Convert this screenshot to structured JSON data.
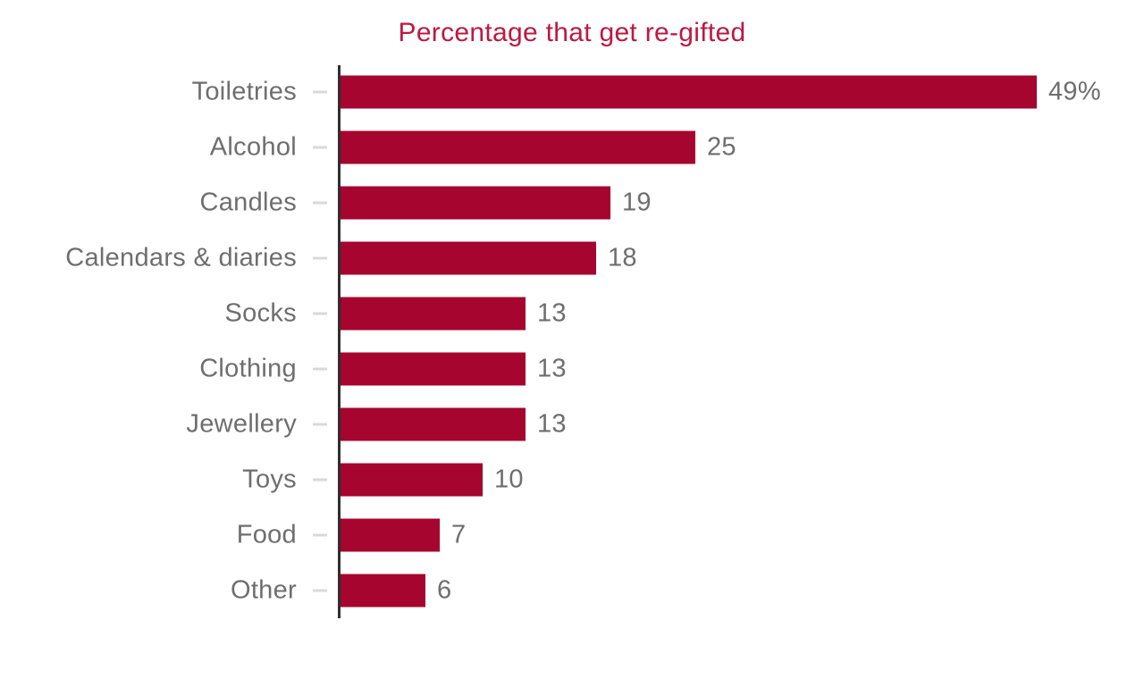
{
  "chart_data": {
    "type": "bar",
    "orientation": "horizontal",
    "title": "Percentage that get re-gifted",
    "categories": [
      "Toiletries",
      "Alcohol",
      "Candles",
      "Calendars & diaries",
      "Socks",
      "Clothing",
      "Jewellery",
      "Toys",
      "Food",
      "Other"
    ],
    "values": [
      49,
      25,
      19,
      18,
      13,
      13,
      13,
      10,
      7,
      6
    ],
    "value_labels": [
      "49%",
      "25",
      "19",
      "18",
      "13",
      "13",
      "13",
      "10",
      "7",
      "6"
    ],
    "xlabel": "",
    "ylabel": "",
    "xlim": [
      0,
      49
    ],
    "grid": false,
    "legend": false,
    "data_labels_position": "outside-end",
    "colors": {
      "bar": "#a5052e",
      "title": "#bb1a43",
      "category_label": "#6e6e6e",
      "value_label": "#6e6e6e",
      "tick": "#d9d9d9",
      "axis_line": "#2f2f2f",
      "background": "#ffffff"
    }
  }
}
